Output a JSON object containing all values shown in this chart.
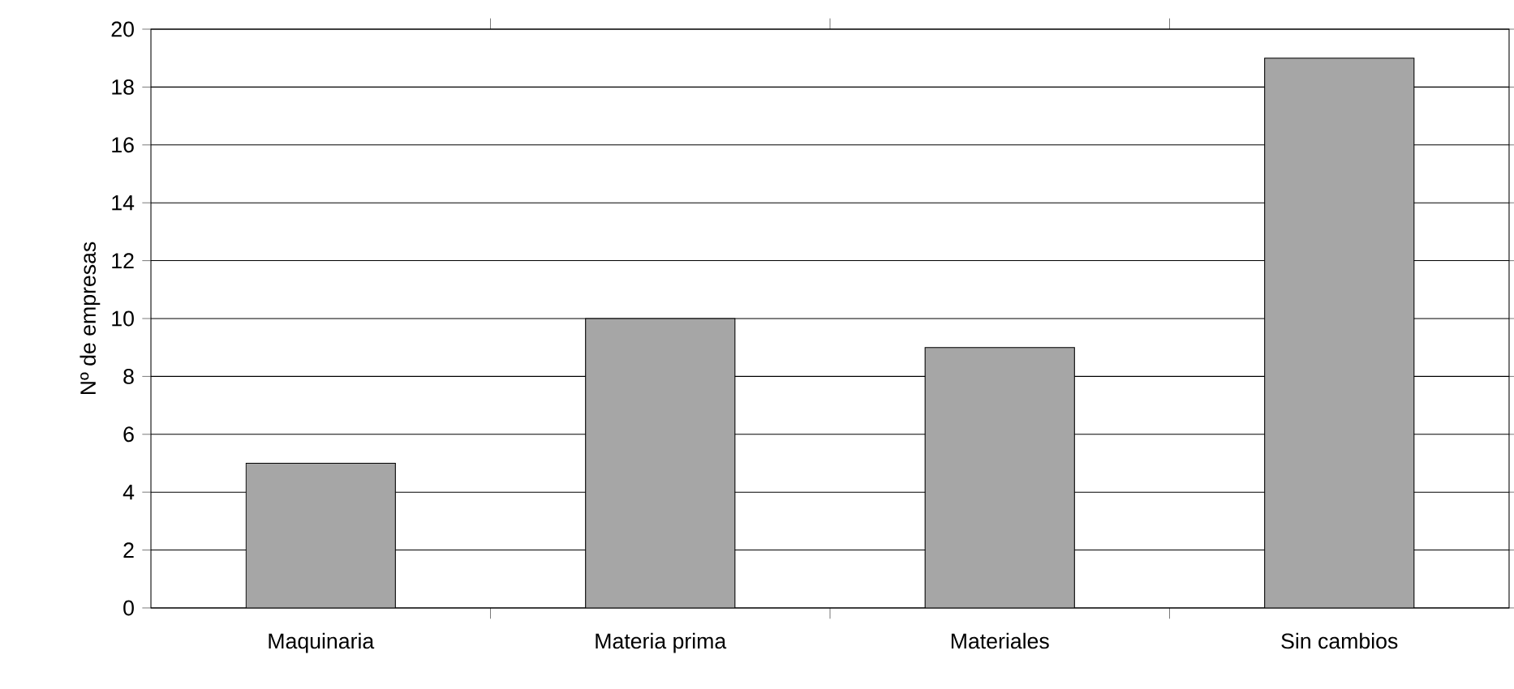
{
  "chart_data": {
    "type": "bar",
    "ylabel": "Nº de empresas",
    "categories": [
      "Maquinaria",
      "Materia prima",
      "Materiales",
      "Sin cambios"
    ],
    "values": [
      5,
      10,
      9,
      19
    ],
    "color": "#a6a6a6",
    "ylim": [
      0,
      20
    ],
    "yticks": [
      0,
      2,
      4,
      6,
      8,
      10,
      12,
      14,
      16,
      18,
      20
    ],
    "grid": "y"
  }
}
